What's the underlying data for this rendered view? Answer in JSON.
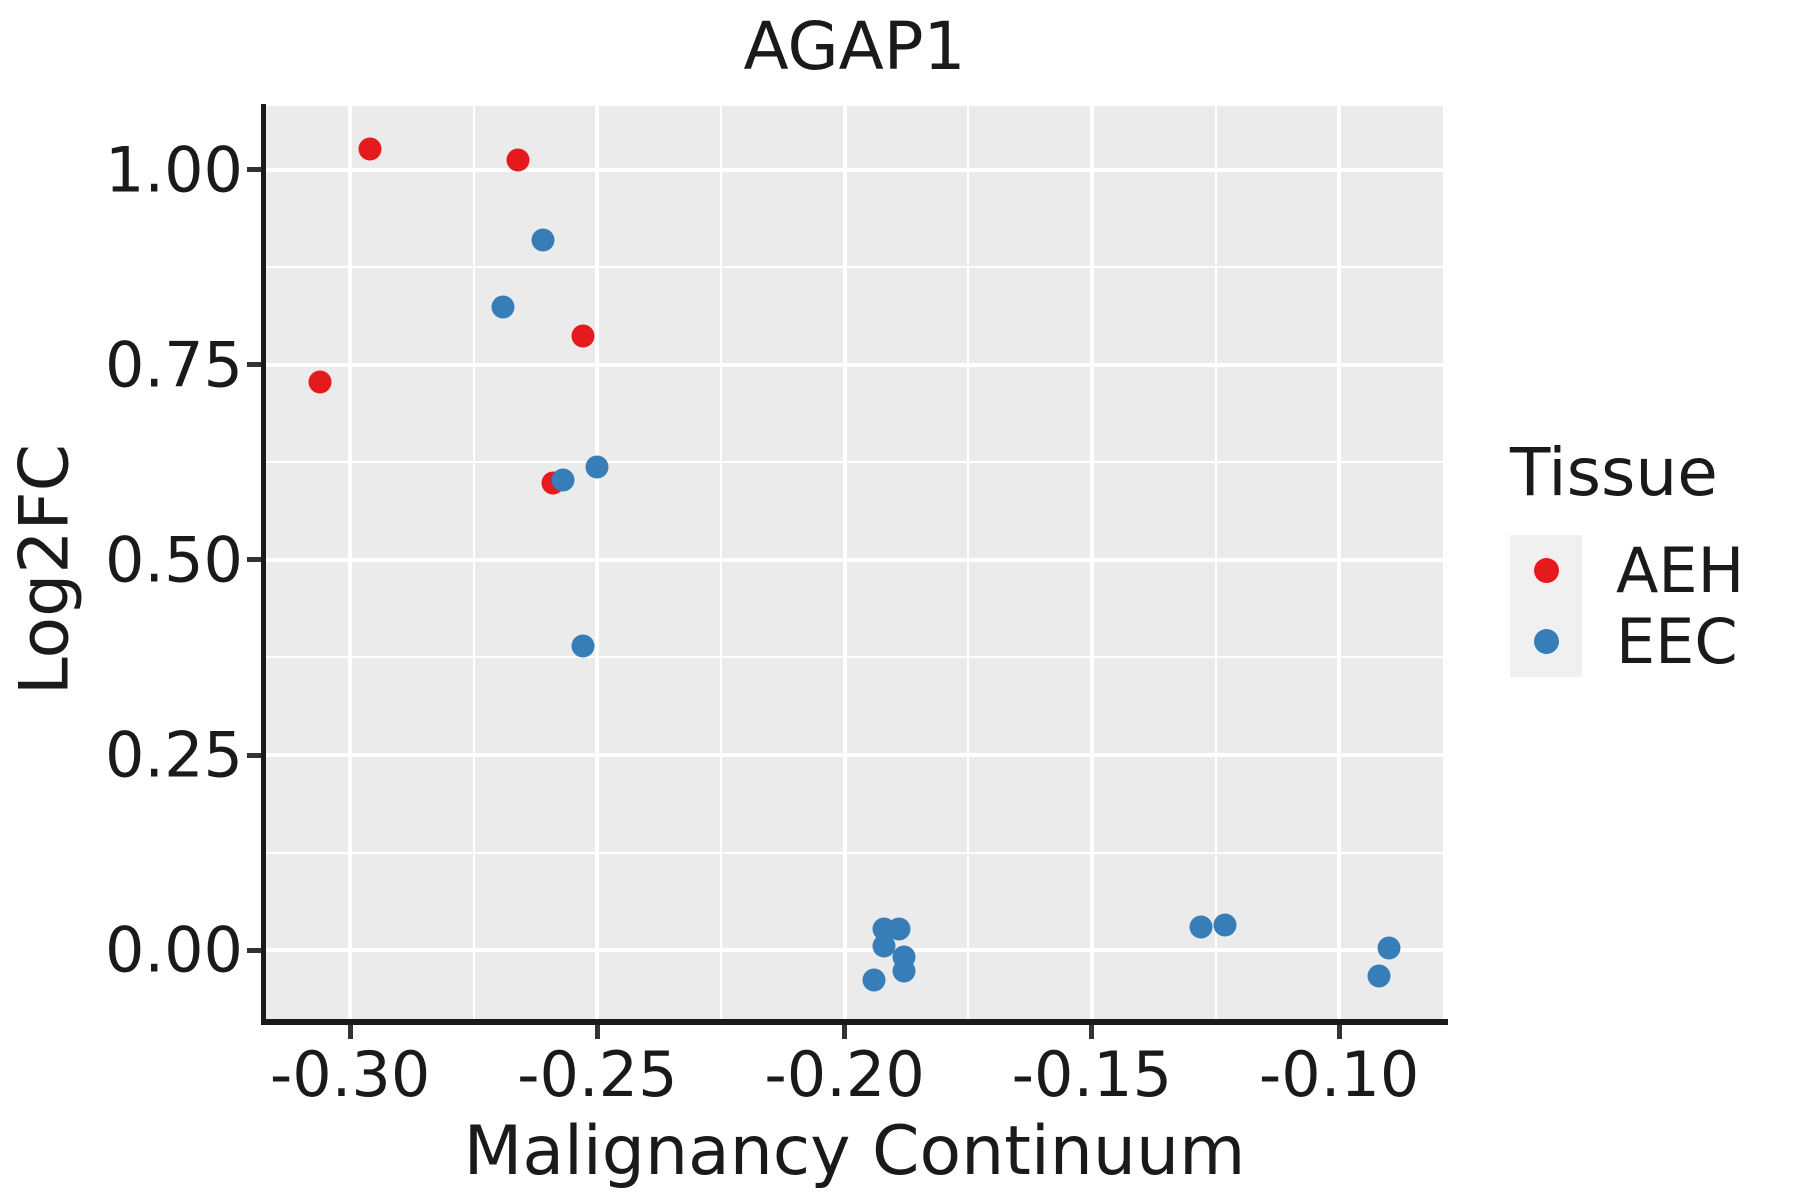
{
  "title": "AGAP1",
  "axes": {
    "x": {
      "label": "Malignancy Continuum",
      "min": -0.317,
      "max": -0.079,
      "major_ticks": [
        -0.3,
        -0.25,
        -0.2,
        -0.15,
        -0.1
      ],
      "minor_ticks": [
        -0.275,
        -0.225,
        -0.175,
        -0.125
      ],
      "tick_labels": [
        "-0.30",
        "-0.25",
        "-0.20",
        "-0.15",
        "-0.10"
      ]
    },
    "y": {
      "label": "Log2FC",
      "min": -0.091,
      "max": 1.082,
      "major_ticks": [
        0.0,
        0.25,
        0.5,
        0.75,
        1.0
      ],
      "minor_ticks": [
        0.125,
        0.375,
        0.625,
        0.875
      ],
      "tick_labels": [
        "0.00",
        "0.25",
        "0.50",
        "0.75",
        "1.00"
      ]
    }
  },
  "legend": {
    "title": "Tissue",
    "entries": [
      {
        "label": "AEH",
        "color": "#E41A1C"
      },
      {
        "label": "EEC",
        "color": "#377EB8"
      }
    ]
  },
  "chart_data": {
    "type": "scatter",
    "title": "AGAP1",
    "xlabel": "Malignancy Continuum",
    "ylabel": "Log2FC",
    "xlim": [
      -0.317,
      -0.079
    ],
    "ylim": [
      -0.091,
      1.082
    ],
    "grid": true,
    "legend_position": "right",
    "series": [
      {
        "name": "AEH",
        "color": "#E41A1C",
        "points": [
          [
            -0.296,
            1.027
          ],
          [
            -0.266,
            1.013
          ],
          [
            -0.253,
            0.787
          ],
          [
            -0.306,
            0.728
          ],
          [
            -0.259,
            0.599
          ]
        ]
      },
      {
        "name": "EEC",
        "color": "#377EB8",
        "points": [
          [
            -0.261,
            0.91
          ],
          [
            -0.269,
            0.824
          ],
          [
            -0.25,
            0.619
          ],
          [
            -0.257,
            0.603
          ],
          [
            -0.253,
            0.39
          ],
          [
            -0.192,
            0.027
          ],
          [
            -0.189,
            0.027
          ],
          [
            -0.192,
            0.005
          ],
          [
            -0.188,
            -0.009
          ],
          [
            -0.188,
            -0.027
          ],
          [
            -0.194,
            -0.038
          ],
          [
            -0.128,
            0.029
          ],
          [
            -0.123,
            0.032
          ],
          [
            -0.09,
            0.003
          ],
          [
            -0.092,
            -0.033
          ]
        ]
      }
    ]
  },
  "style": {
    "panel_bg": "#EBEBEB",
    "grid_color": "#FFFFFF",
    "axis_color": "#1A1A1A",
    "tick_color": "#333333",
    "legend_key_bg": "#F0F0F0"
  }
}
